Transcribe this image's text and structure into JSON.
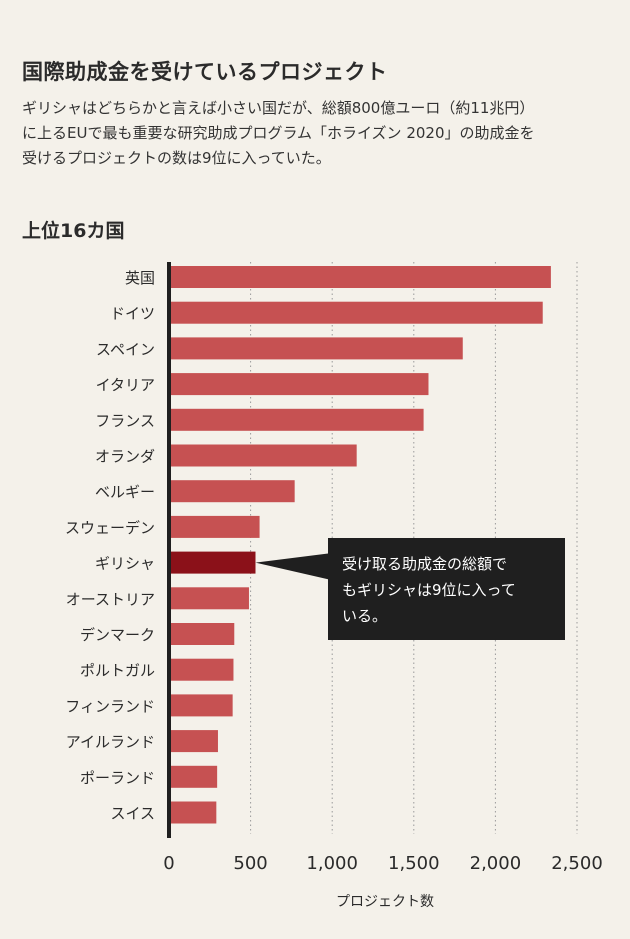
{
  "header": {
    "title": "国際助成金を受けているプロジェクト",
    "description_lines": [
      "ギリシャはどちらかと言えば小さい国だが、総額800億ユーロ（約11兆円）",
      "に上るEUで最も重要な研究助成プログラム「ホライズン 2020」の助成金を",
      "受けるプロジェクトの数は9位に入っていた。"
    ],
    "subtitle": "上位16カ国"
  },
  "callout": {
    "lines": [
      "受け取る助成金の総額で",
      "もギリシャは9位に入って",
      "いる。"
    ]
  },
  "colors": {
    "bar": "#c65152",
    "highlight": "#8b1119",
    "background": "#f4f1ea",
    "callout_bg": "#1f1f1f"
  },
  "chart_data": {
    "type": "bar",
    "orientation": "horizontal",
    "categories": [
      "英国",
      "ドイツ",
      "スペイン",
      "イタリア",
      "フランス",
      "オランダ",
      "ベルギー",
      "スウェーデン",
      "ギリシャ",
      "オーストリア",
      "デンマーク",
      "ポルトガル",
      "フィンランド",
      "アイルランド",
      "ポーランド",
      "スイス"
    ],
    "values": [
      2340,
      2290,
      1800,
      1590,
      1560,
      1150,
      770,
      555,
      530,
      490,
      400,
      395,
      390,
      300,
      295,
      290
    ],
    "highlight": "ギリシャ",
    "xlabel": "プロジェクト数",
    "xlim": [
      0,
      2500
    ],
    "xticks": [
      0,
      500,
      1000,
      1500,
      2000,
      2500
    ],
    "xtick_labels": [
      "0",
      "500",
      "1,000",
      "1,500",
      "2,000",
      "2,500"
    ],
    "grid": true
  }
}
